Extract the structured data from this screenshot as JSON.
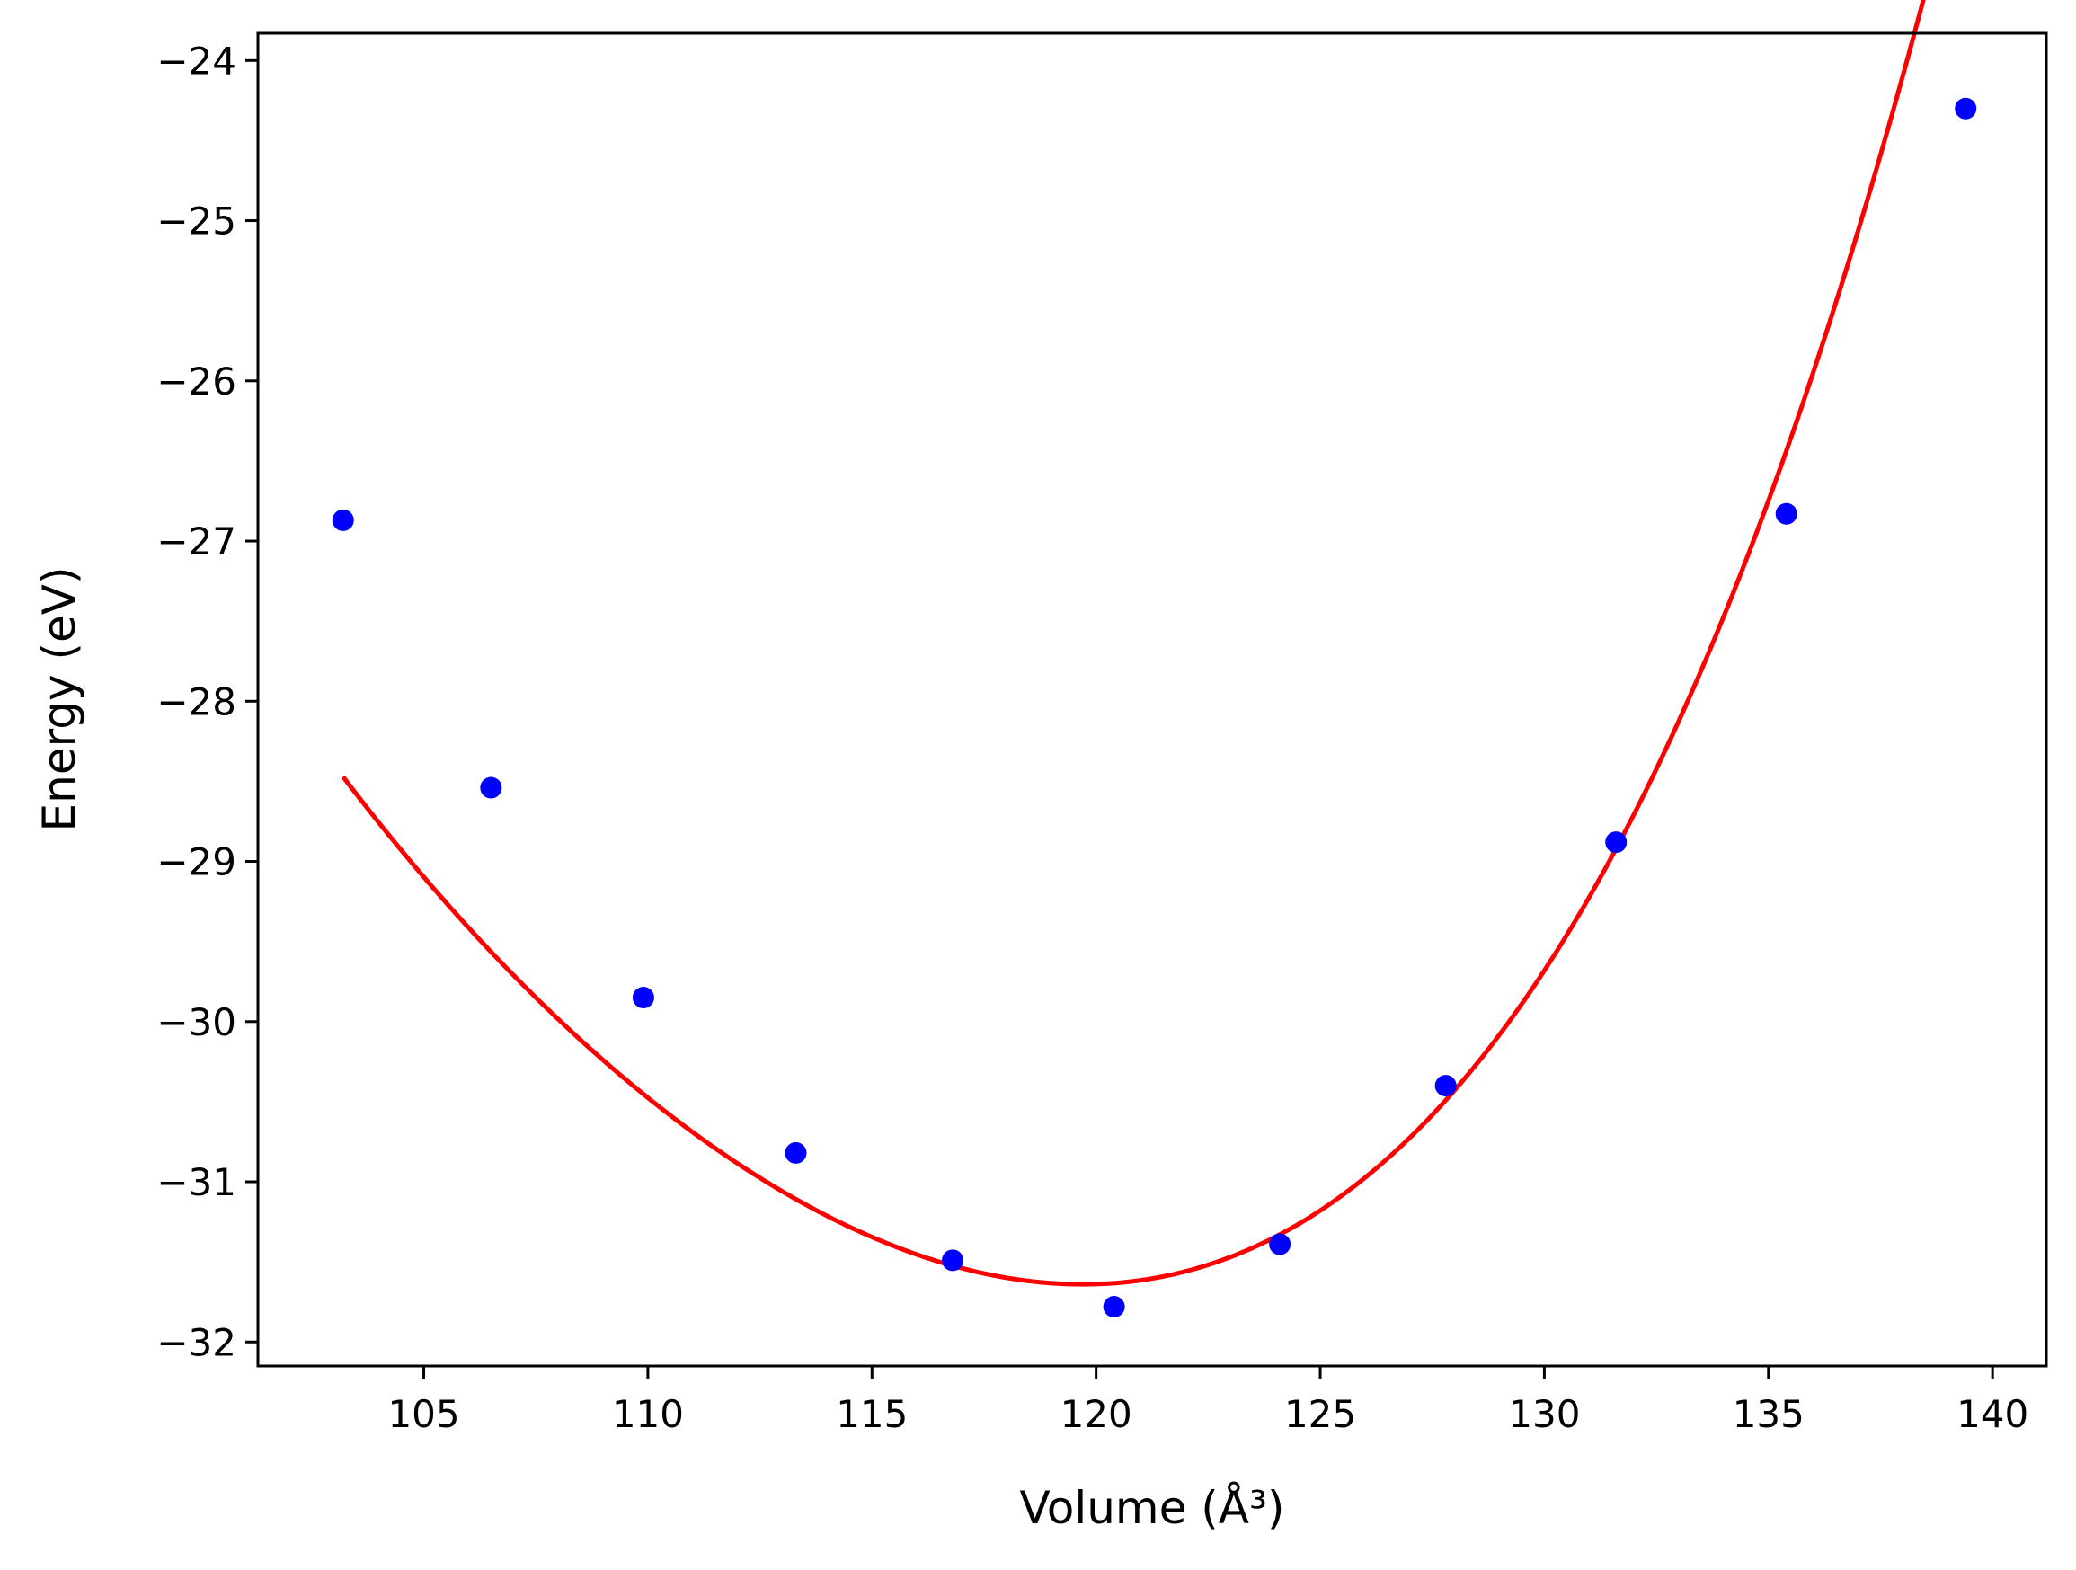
{
  "chart_data": {
    "type": "scatter",
    "xlabel": "Volume (Å³)",
    "ylabel": "Energy (eV)",
    "xlim": [
      101.3,
      141.2
    ],
    "ylim": [
      -32.15,
      -23.83
    ],
    "xticks": [
      105,
      110,
      115,
      120,
      125,
      130,
      135,
      140
    ],
    "xtick_labels": [
      "105",
      "110",
      "115",
      "120",
      "125",
      "130",
      "135",
      "140"
    ],
    "yticks": [
      -24,
      -25,
      -26,
      -27,
      -28,
      -29,
      -30,
      -31,
      -32
    ],
    "ytick_labels": [
      "−24",
      "−25",
      "−26",
      "−27",
      "−28",
      "−29",
      "−30",
      "−31",
      "−32"
    ],
    "grid": false,
    "series": [
      {
        "type": "scatter",
        "color": "#0000ff",
        "x": [
          103.2,
          106.5,
          109.9,
          113.3,
          116.8,
          120.4,
          124.1,
          127.8,
          131.6,
          135.4,
          139.4
        ],
        "y": [
          -26.87,
          -28.54,
          -29.85,
          -30.82,
          -31.49,
          -31.78,
          -31.39,
          -30.4,
          -28.88,
          -26.83,
          -24.3
        ]
      },
      {
        "type": "line",
        "color": "#ff0000",
        "fit": {
          "kind": "quartic",
          "x0": 119.7,
          "coeffs": [
            -31.64,
            0.0,
            0.0146,
            0.0003,
            7.3e-06
          ]
        },
        "x_range": [
          103.2,
          139.4
        ]
      }
    ]
  }
}
